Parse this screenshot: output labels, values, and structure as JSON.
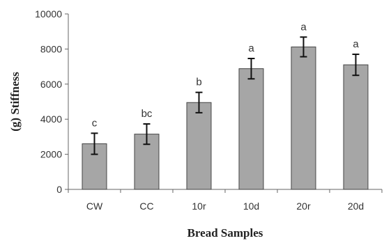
{
  "chart_data": {
    "type": "bar",
    "categories": [
      "CW",
      "CC",
      "10r",
      "10d",
      "20r",
      "20d"
    ],
    "values": [
      2600,
      3150,
      4950,
      6880,
      8120,
      7100
    ],
    "errors": [
      600,
      580,
      580,
      580,
      560,
      600
    ],
    "significance": [
      "c",
      "bc",
      "b",
      "a",
      "a",
      "a"
    ],
    "xlabel": "Bread Samples",
    "ylabel": "(g) Stiffness",
    "ylim": [
      0,
      10000
    ],
    "yticks": [
      0,
      2000,
      4000,
      6000,
      8000,
      10000
    ],
    "ytick_labels": [
      "0",
      "2000",
      "4000",
      "6000",
      "8000",
      "10000"
    ],
    "grid": false,
    "bar_color": "#a6a6a6"
  }
}
